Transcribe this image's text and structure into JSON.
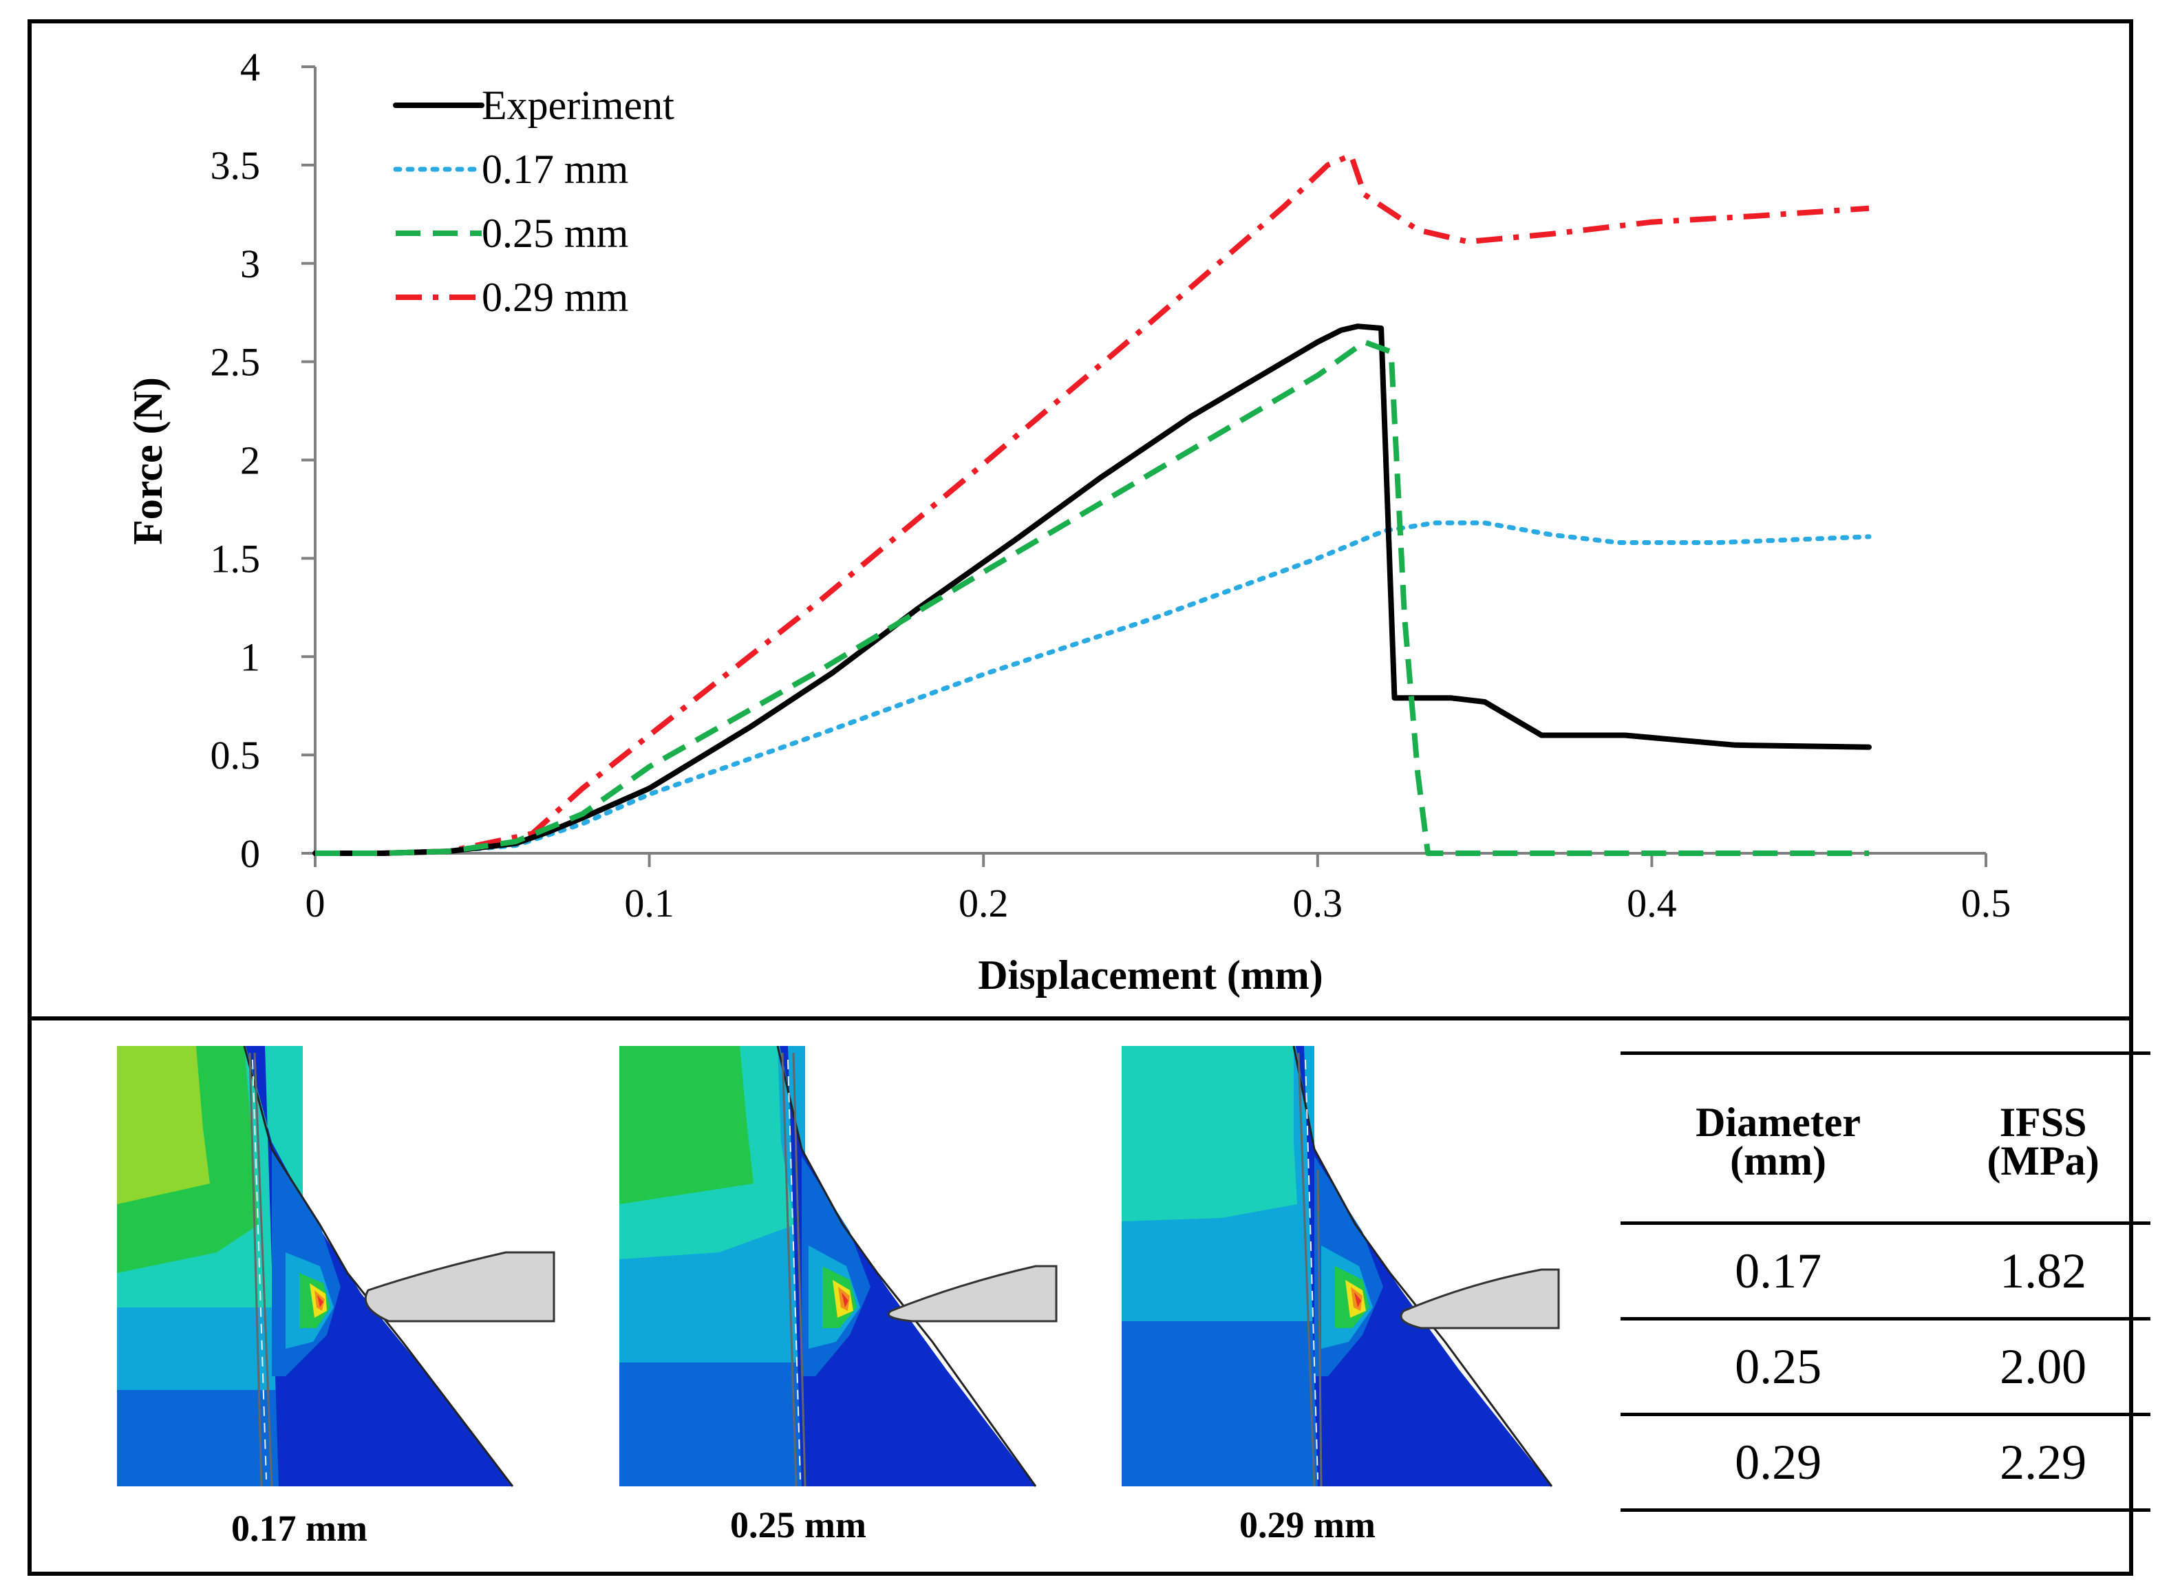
{
  "chart_data": {
    "type": "line",
    "xlabel": "Displacement (mm)",
    "ylabel": "Force (N)",
    "xlim": [
      0,
      0.5
    ],
    "ylim": [
      0,
      4
    ],
    "xticks": [
      0,
      0.1,
      0.2,
      0.3,
      0.4,
      0.5
    ],
    "xtick_labels": [
      "0",
      "0.1",
      "0.2",
      "0.3",
      "0.4",
      "0.5"
    ],
    "yticks": [
      0,
      0.5,
      1,
      1.5,
      2,
      2.5,
      3,
      3.5,
      4
    ],
    "ytick_labels": [
      "0",
      "0.5",
      "1",
      "1.5",
      "2",
      "2.5",
      "3",
      "3.5",
      "4"
    ],
    "grid": false,
    "legend_position": "top-left",
    "series": [
      {
        "name": "Experiment",
        "color": "#000000",
        "style": "solid",
        "x": [
          0,
          0.02,
          0.04,
          0.06,
          0.07,
          0.08,
          0.1,
          0.13,
          0.155,
          0.18,
          0.21,
          0.235,
          0.262,
          0.285,
          0.3,
          0.307,
          0.312,
          0.319,
          0.323,
          0.34,
          0.35,
          0.367,
          0.392,
          0.425,
          0.465
        ],
        "y": [
          0,
          0,
          0.01,
          0.05,
          0.11,
          0.18,
          0.33,
          0.64,
          0.92,
          1.24,
          1.6,
          1.91,
          2.22,
          2.45,
          2.6,
          2.66,
          2.68,
          2.67,
          0.79,
          0.79,
          0.77,
          0.6,
          0.6,
          0.55,
          0.54
        ]
      },
      {
        "name": "0.17 mm",
        "color": "#29aae2",
        "style": "dotted",
        "x": [
          0,
          0.02,
          0.04,
          0.06,
          0.08,
          0.1,
          0.15,
          0.2,
          0.25,
          0.3,
          0.32,
          0.335,
          0.35,
          0.37,
          0.39,
          0.42,
          0.45,
          0.465
        ],
        "y": [
          0,
          0,
          0.01,
          0.04,
          0.15,
          0.3,
          0.6,
          0.91,
          1.19,
          1.5,
          1.64,
          1.68,
          1.68,
          1.62,
          1.58,
          1.58,
          1.6,
          1.61
        ]
      },
      {
        "name": "0.25 mm",
        "color": "#1aae4c",
        "style": "dashed",
        "x": [
          0,
          0.02,
          0.04,
          0.06,
          0.08,
          0.1,
          0.15,
          0.2,
          0.25,
          0.3,
          0.314,
          0.322,
          0.326,
          0.33,
          0.333,
          0.4,
          0.465
        ],
        "y": [
          0,
          0,
          0.01,
          0.06,
          0.2,
          0.44,
          0.92,
          1.43,
          1.93,
          2.43,
          2.6,
          2.55,
          1.2,
          0.4,
          0,
          0,
          0
        ]
      },
      {
        "name": "0.29 mm",
        "color": "#ee1c24",
        "style": "dashdot",
        "x": [
          0,
          0.02,
          0.04,
          0.065,
          0.08,
          0.1,
          0.15,
          0.2,
          0.25,
          0.29,
          0.303,
          0.31,
          0.314,
          0.33,
          0.345,
          0.37,
          0.4,
          0.43,
          0.465
        ],
        "y": [
          0,
          0,
          0.01,
          0.1,
          0.33,
          0.6,
          1.27,
          1.98,
          2.7,
          3.29,
          3.5,
          3.55,
          3.35,
          3.17,
          3.11,
          3.15,
          3.21,
          3.24,
          3.28
        ]
      }
    ]
  },
  "simulations": [
    {
      "caption": "0.17 mm"
    },
    {
      "caption": "0.25 mm"
    },
    {
      "caption": "0.29 mm"
    }
  ],
  "table": {
    "headers": [
      {
        "line1": "Diameter",
        "line2": "(mm)"
      },
      {
        "line1": "IFSS",
        "line2": "(MPa)"
      }
    ],
    "rows": [
      {
        "diameter": "0.17",
        "ifss": "1.82"
      },
      {
        "diameter": "0.25",
        "ifss": "2.00"
      },
      {
        "diameter": "0.29",
        "ifss": "2.29"
      }
    ]
  },
  "colors": {
    "contour_red": "#e8322a",
    "contour_orange": "#f28e1c",
    "contour_yellow": "#eee11c",
    "contour_green": "#22c64a",
    "contour_lightgreen": "#8fd62e",
    "contour_cyan": "#1ad0b8",
    "contour_lightblue": "#0fa6d9",
    "contour_blue": "#0a67d6",
    "contour_darkblue": "#0a2cc8",
    "tip_gray": "#d4d4d4"
  }
}
